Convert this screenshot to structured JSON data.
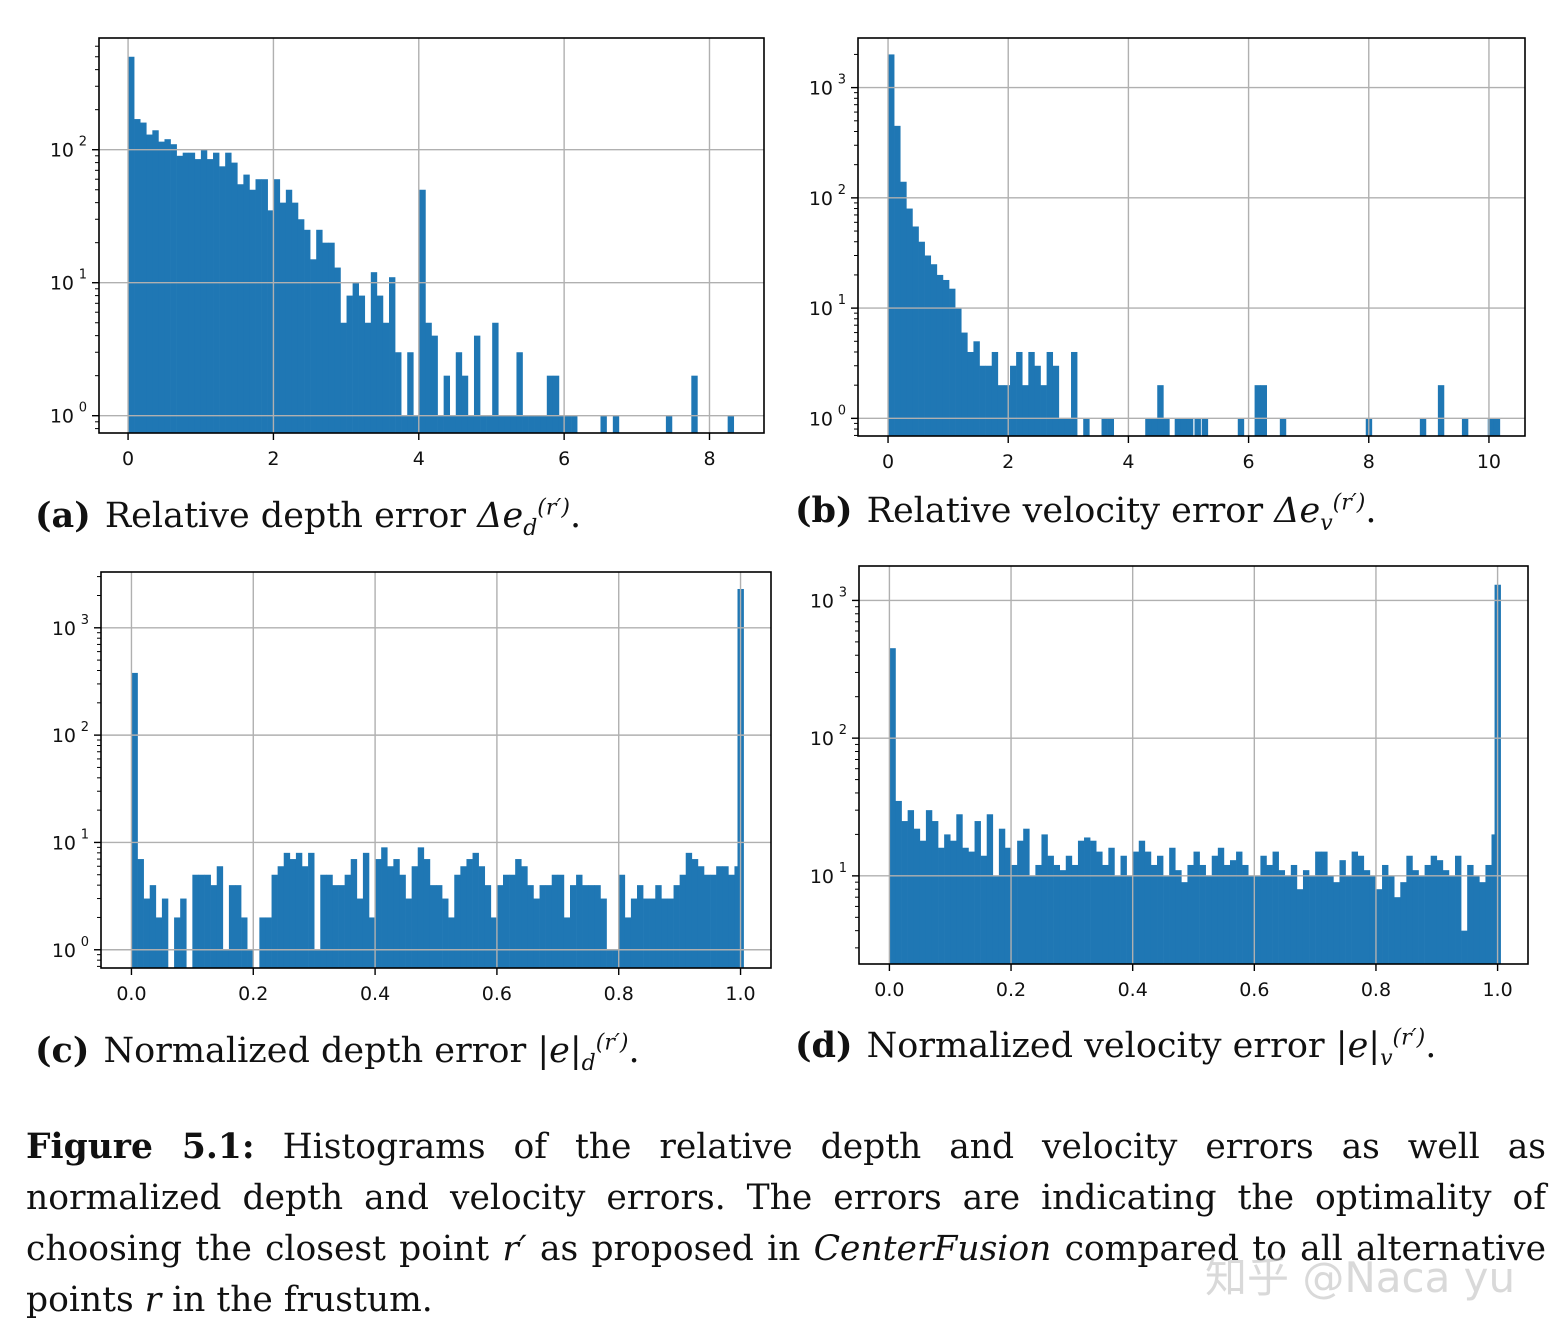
{
  "chart_data": [
    {
      "type": "bar",
      "id": "a",
      "yscale": "log",
      "xlim": [
        -0.4,
        8.75
      ],
      "ylim_exp": [
        -0.13,
        2.84
      ],
      "x_ticks": [
        0,
        2,
        4,
        6,
        8
      ],
      "y_ticks": [
        0,
        1,
        2
      ],
      "grid": true,
      "bin_start": 0,
      "bin_width": 0.0835,
      "values": [
        500,
        170,
        160,
        130,
        140,
        115,
        120,
        110,
        90,
        95,
        95,
        85,
        100,
        85,
        95,
        75,
        95,
        80,
        55,
        65,
        50,
        60,
        60,
        35,
        60,
        40,
        50,
        40,
        30,
        25,
        15,
        25,
        20,
        20,
        13,
        5,
        8,
        10,
        8,
        5,
        12,
        8,
        5,
        11,
        3,
        1,
        3,
        1,
        50,
        5,
        4,
        1,
        2,
        1,
        3,
        2,
        1,
        4,
        1,
        1,
        5,
        1,
        1,
        1,
        3,
        1,
        1,
        1,
        1,
        2,
        2,
        1,
        1,
        1,
        0,
        0,
        0,
        0,
        0,
        0,
        0,
        0,
        0,
        0,
        0,
        0,
        0,
        0,
        0,
        0,
        0,
        0,
        0,
        0,
        0,
        0,
        0,
        0,
        0,
        0
      ],
      "extra_bars": [
        {
          "x": 6.5,
          "v": 1
        },
        {
          "x": 6.67,
          "v": 1
        },
        {
          "x": 7.4,
          "v": 1
        },
        {
          "x": 7.75,
          "v": 2
        },
        {
          "x": 8.25,
          "v": 1
        }
      ],
      "label": "(a)",
      "caption": "Relative depth error",
      "symbol": "Δe",
      "sub": "d",
      "sup": "(r′)"
    },
    {
      "type": "bar",
      "id": "b",
      "yscale": "log",
      "xlim": [
        -0.5,
        10.6
      ],
      "ylim_exp": [
        -0.16,
        3.45
      ],
      "x_ticks": [
        0,
        2,
        4,
        6,
        8,
        10
      ],
      "y_ticks": [
        0,
        1,
        2,
        3
      ],
      "grid": true,
      "bin_start": 0,
      "bin_width": 0.1015,
      "values": [
        2000,
        450,
        140,
        80,
        55,
        40,
        30,
        25,
        20,
        18,
        15,
        10,
        6,
        4,
        5,
        3,
        3,
        4,
        2,
        2,
        3,
        4,
        2,
        4,
        3,
        2,
        4,
        3,
        1,
        1,
        4,
        1,
        1,
        1,
        3,
        1,
        1,
        1,
        1,
        1,
        2,
        2,
        1,
        1,
        1,
        1,
        1,
        1,
        1,
        1,
        1,
        1,
        1,
        1,
        2,
        1,
        1,
        1,
        1,
        1,
        1,
        1,
        1,
        1,
        1,
        2,
        1,
        1,
        1,
        1,
        1,
        1,
        1,
        1,
        2,
        2,
        1,
        1,
        1,
        1,
        1,
        1,
        1,
        1,
        1,
        1,
        1,
        1,
        1,
        1,
        1,
        1,
        1,
        1,
        1,
        1,
        1,
        1,
        1,
        1
      ],
      "visible_mask": "1111111111111111111111111111111010011000000000011100000000000000000000000000000000000000000000000000",
      "extra_bars": [
        {
          "x": 4.28,
          "v": 1
        },
        {
          "x": 4.38,
          "v": 1
        },
        {
          "x": 4.48,
          "v": 2
        },
        {
          "x": 4.58,
          "v": 1
        },
        {
          "x": 5.1,
          "v": 1
        },
        {
          "x": 5.22,
          "v": 1
        },
        {
          "x": 5.82,
          "v": 1
        },
        {
          "x": 6.1,
          "v": 2
        },
        {
          "x": 6.2,
          "v": 2
        },
        {
          "x": 6.52,
          "v": 1
        },
        {
          "x": 7.95,
          "v": 1
        },
        {
          "x": 8.85,
          "v": 1
        },
        {
          "x": 9.15,
          "v": 2
        },
        {
          "x": 9.55,
          "v": 1
        },
        {
          "x": 9.98,
          "v": 1
        },
        {
          "x": 10.08,
          "v": 1
        }
      ],
      "label": "(b)",
      "caption": "Relative velocity error",
      "symbol": "Δe",
      "sub": "v",
      "sup": "(r′)"
    },
    {
      "type": "bar",
      "id": "c",
      "yscale": "log",
      "xlim": [
        -0.05,
        1.05
      ],
      "ylim_exp": [
        -0.17,
        3.52
      ],
      "x_ticks": [
        0.0,
        0.2,
        0.4,
        0.6,
        0.8,
        1.0
      ],
      "y_ticks": [
        0,
        1,
        2,
        3
      ],
      "grid": true,
      "bin_start": 0,
      "bin_width": 0.01,
      "values": [
        380,
        7,
        3,
        4,
        2,
        3,
        0,
        2,
        3,
        0,
        5,
        5,
        5,
        4,
        6,
        1,
        4,
        4,
        2,
        1,
        0,
        2,
        2,
        5,
        6,
        8,
        7,
        8,
        6,
        8,
        1,
        5,
        5,
        4,
        4,
        5,
        7,
        3,
        8,
        2,
        7,
        9,
        6,
        7,
        5,
        3,
        6,
        9,
        7,
        4,
        4,
        3,
        2,
        5,
        6,
        7,
        8,
        6,
        4,
        2,
        4,
        5,
        5,
        7,
        6,
        4,
        3,
        4,
        4,
        5,
        5,
        2,
        4,
        5,
        4,
        4,
        4,
        3,
        1,
        1,
        5,
        2,
        3,
        4,
        3,
        3,
        4,
        3,
        3,
        4,
        5,
        8,
        7,
        6,
        5,
        5,
        6,
        6,
        5,
        6
      ],
      "end_bar": {
        "x": 0.995,
        "v": 2300
      },
      "label": "(c)",
      "caption": "Normalized depth error",
      "symbol": "|e|",
      "sub": "d",
      "sup": "(r′)"
    },
    {
      "type": "bar",
      "id": "d",
      "yscale": "log",
      "xlim": [
        -0.05,
        1.05
      ],
      "ylim_exp": [
        0.36,
        3.25
      ],
      "x_ticks": [
        0.0,
        0.2,
        0.4,
        0.6,
        0.8,
        1.0
      ],
      "y_ticks": [
        1,
        2,
        3
      ],
      "grid": true,
      "bin_start": 0,
      "bin_width": 0.01,
      "values": [
        450,
        35,
        25,
        30,
        22,
        18,
        30,
        25,
        16,
        20,
        18,
        28,
        16,
        15,
        25,
        14,
        28,
        10,
        22,
        16,
        12,
        18,
        22,
        10,
        12,
        20,
        14,
        12,
        11,
        14,
        12,
        18,
        19,
        18,
        15,
        12,
        16,
        10,
        14,
        10,
        15,
        18,
        15,
        12,
        14,
        10,
        16,
        11,
        9,
        12,
        15,
        12,
        10,
        14,
        16,
        12,
        13,
        15,
        12,
        10,
        10,
        14,
        12,
        15,
        11,
        10,
        12,
        8,
        11,
        10,
        15,
        15,
        10,
        9,
        13,
        10,
        15,
        14,
        11,
        10,
        8,
        12,
        10,
        7,
        9,
        14,
        11,
        10,
        12,
        14,
        13,
        11,
        10,
        14,
        4,
        12,
        10,
        9,
        12,
        20
      ],
      "end_bar": {
        "x": 0.995,
        "v": 1300
      },
      "label": "(d)",
      "caption": "Normalized velocity error",
      "symbol": "|e|",
      "sub": "v",
      "sup": "(r′)"
    }
  ],
  "colors": {
    "bar": "#1f77b4",
    "grid": "#b0b0b0",
    "axis": "#000000"
  },
  "figure_caption": {
    "label": "Figure 5.1:",
    "text_1": " Histograms of the relative depth and velocity errors as well as normalized depth and velocity errors. The errors are indicating the optimality of choosing the closest point ",
    "var_1": "r′",
    "text_2": " as proposed in ",
    "method": "CenterFusion",
    "text_3": " compared to all alternative points ",
    "var_2": "r",
    "text_4": " in the frustum."
  },
  "watermark": "知乎 @Naca yu"
}
